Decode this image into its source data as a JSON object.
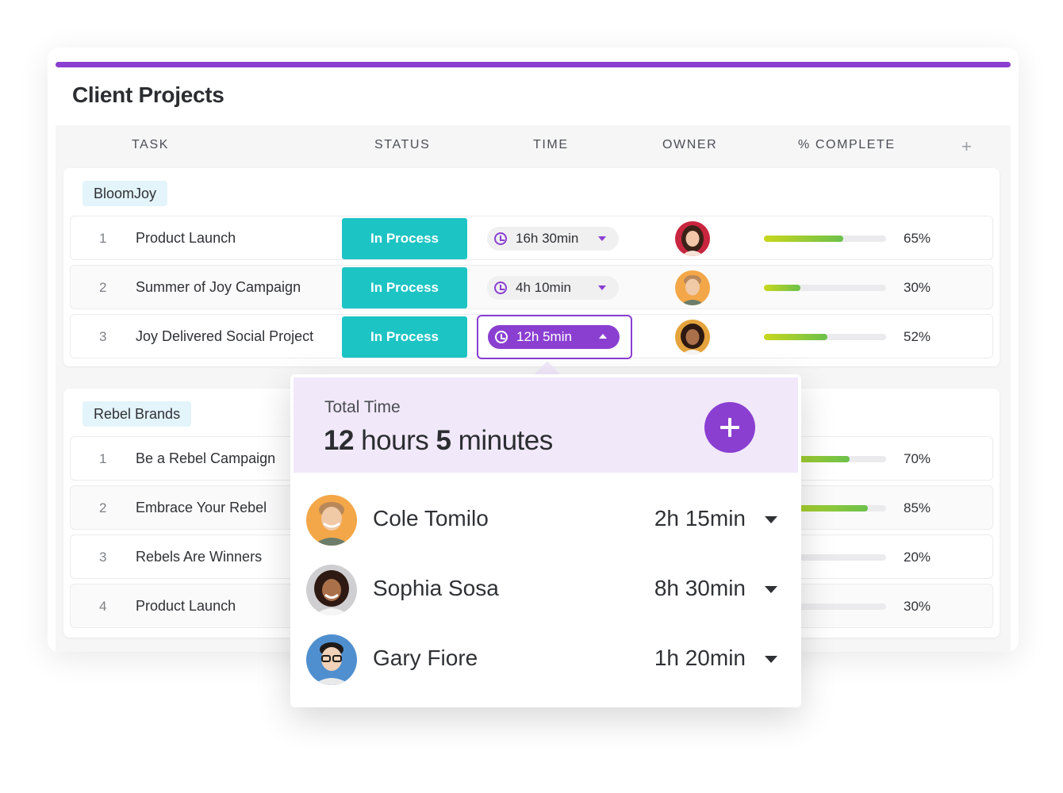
{
  "page": {
    "title": "Client Projects"
  },
  "columns": {
    "task": "TASK",
    "status": "STATUS",
    "time": "TIME",
    "owner": "OWNER",
    "complete": "% COMPLETE",
    "add": "+"
  },
  "groups": [
    {
      "name": "BloomJoy",
      "rows": [
        {
          "num": "1",
          "name": "Product Launch",
          "status": "In Process",
          "time": "16h 30min",
          "owner": "woman-dark-hair",
          "pct": "65%",
          "progress": 0.65
        },
        {
          "num": "2",
          "name": "Summer of Joy Campaign",
          "status": "In Process",
          "time": "4h 10min",
          "owner": "cole-tomilo",
          "pct": "30%",
          "progress": 0.3
        },
        {
          "num": "3",
          "name": "Joy Delivered Social Project",
          "status": "In Process",
          "time": "12h 5min",
          "owner": "sophia-sosa",
          "pct": "52%",
          "progress": 0.52
        }
      ]
    },
    {
      "name": "Rebel Brands",
      "rows": [
        {
          "num": "1",
          "name": "Be a Rebel Campaign",
          "pct": "70%",
          "progress": 0.7
        },
        {
          "num": "2",
          "name": "Embrace Your Rebel",
          "pct": "85%",
          "progress": 0.85
        },
        {
          "num": "3",
          "name": "Rebels Are Winners",
          "pct": "20%",
          "progress": 0.2
        },
        {
          "num": "4",
          "name": "Product Launch",
          "pct": "30%",
          "progress": 0.3
        }
      ]
    }
  ],
  "popover": {
    "label": "Total Time",
    "total_hours": "12",
    "hours_word": "hours",
    "total_minutes": "5",
    "minutes_word": "minutes",
    "add": "+",
    "entries": [
      {
        "name": "Cole Tomilo",
        "time": "2h 15min"
      },
      {
        "name": "Sophia Sosa",
        "time": "8h 30min"
      },
      {
        "name": "Gary Fiore",
        "time": "1h 20min"
      }
    ]
  },
  "colors": {
    "accent": "#8a3fd1",
    "status": "#1dc4c4",
    "progress_start": "#c9d71c",
    "progress_end": "#6bc04b",
    "group_tag": "#e3f4fb"
  }
}
